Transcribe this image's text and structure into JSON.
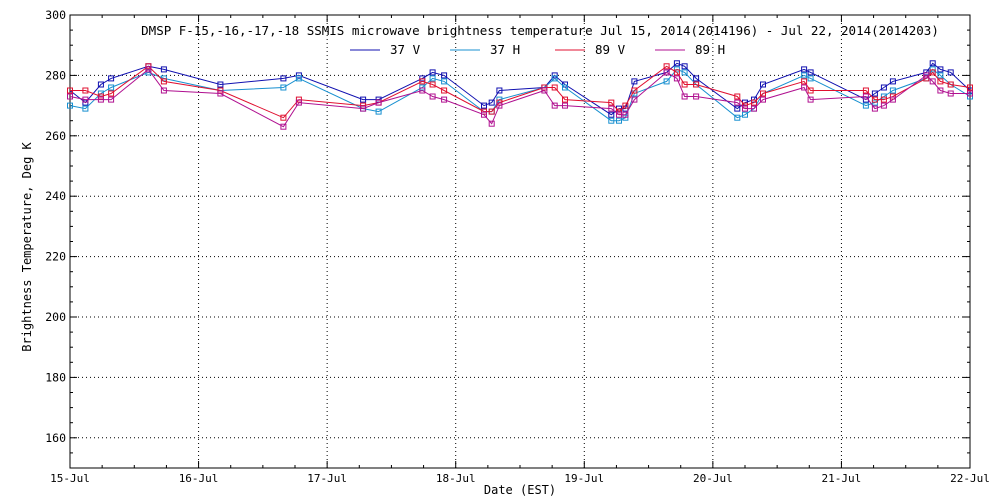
{
  "chart_data": {
    "type": "line",
    "title": "DMSP F-15,-16,-17,-18 SSMIS microwave brightness temperature Jul 15, 2014(2014196) - Jul 22, 2014(2014203)",
    "xlabel": "Date (EST)",
    "ylabel": "Brightness Temperature, Deg K",
    "xlim": [
      0,
      7
    ],
    "ylim": [
      150,
      300
    ],
    "x_ticks": [
      {
        "pos": 0,
        "label": "15-Jul"
      },
      {
        "pos": 1,
        "label": "16-Jul"
      },
      {
        "pos": 2,
        "label": "17-Jul"
      },
      {
        "pos": 3,
        "label": "18-Jul"
      },
      {
        "pos": 4,
        "label": "19-Jul"
      },
      {
        "pos": 5,
        "label": "20-Jul"
      },
      {
        "pos": 6,
        "label": "21-Jul"
      },
      {
        "pos": 7,
        "label": "22-Jul"
      }
    ],
    "y_ticks": [
      160,
      180,
      200,
      220,
      240,
      260,
      280,
      300
    ],
    "grid": true,
    "series": [
      {
        "name": "37 V",
        "color": "#1010b0",
        "x": [
          0,
          0.12,
          0.24,
          0.32,
          0.61,
          0.73,
          1.17,
          1.66,
          1.78,
          2.28,
          2.4,
          2.74,
          2.82,
          2.91,
          3.22,
          3.28,
          3.34,
          3.69,
          3.77,
          3.85,
          4.21,
          4.27,
          4.32,
          4.39,
          4.64,
          4.72,
          4.78,
          4.87,
          5.19,
          5.25,
          5.32,
          5.39,
          5.71,
          5.76,
          6.19,
          6.26,
          6.33,
          6.4,
          6.66,
          6.71,
          6.77,
          6.85,
          7
        ],
        "y": [
          275,
          271,
          277,
          279,
          283,
          282,
          277,
          279,
          280,
          272,
          272,
          279,
          281,
          280,
          270,
          271,
          275,
          276,
          280,
          277,
          267,
          269,
          269,
          278,
          281,
          284,
          283,
          279,
          269,
          271,
          272,
          277,
          282,
          281,
          272,
          274,
          276,
          278,
          281,
          284,
          282,
          281,
          275
        ]
      },
      {
        "name": "37 H",
        "color": "#1890d0",
        "x": [
          0,
          0.12,
          0.24,
          0.32,
          0.61,
          0.73,
          1.17,
          1.66,
          1.78,
          2.28,
          2.4,
          2.74,
          2.82,
          2.91,
          3.22,
          3.28,
          3.34,
          3.69,
          3.77,
          3.85,
          4.21,
          4.27,
          4.32,
          4.39,
          4.64,
          4.72,
          4.78,
          4.87,
          5.19,
          5.25,
          5.32,
          5.39,
          5.71,
          5.76,
          6.19,
          6.26,
          6.33,
          6.4,
          6.66,
          6.71,
          6.77,
          6.85,
          7
        ],
        "y": [
          270,
          269,
          274,
          276,
          281,
          279,
          275,
          276,
          279,
          269,
          268,
          276,
          279,
          278,
          268,
          268,
          272,
          276,
          279,
          276,
          265,
          265,
          266,
          274,
          278,
          282,
          281,
          277,
          266,
          267,
          269,
          274,
          280,
          279,
          270,
          271,
          273,
          275,
          279,
          282,
          280,
          277,
          273
        ]
      },
      {
        "name": "89 V",
        "color": "#e01030",
        "x": [
          0,
          0.12,
          0.24,
          0.32,
          0.61,
          0.73,
          1.17,
          1.66,
          1.78,
          2.28,
          2.4,
          2.74,
          2.82,
          2.91,
          3.22,
          3.28,
          3.34,
          3.69,
          3.77,
          3.85,
          4.21,
          4.27,
          4.32,
          4.39,
          4.64,
          4.72,
          4.78,
          4.87,
          5.19,
          5.25,
          5.32,
          5.39,
          5.71,
          5.76,
          6.19,
          6.26,
          6.33,
          6.4,
          6.66,
          6.71,
          6.77,
          6.85,
          7
        ],
        "y": [
          275,
          275,
          273,
          274,
          283,
          278,
          275,
          266,
          272,
          270,
          271,
          278,
          277,
          275,
          268,
          268,
          271,
          276,
          276,
          272,
          271,
          268,
          270,
          275,
          283,
          281,
          277,
          277,
          273,
          270,
          271,
          274,
          278,
          275,
          275,
          272,
          272,
          273,
          279,
          281,
          278,
          277,
          276
        ]
      },
      {
        "name": "89 H",
        "color": "#b01090",
        "x": [
          0,
          0.12,
          0.24,
          0.32,
          0.61,
          0.73,
          1.17,
          1.66,
          1.78,
          2.28,
          2.4,
          2.74,
          2.82,
          2.91,
          3.22,
          3.28,
          3.34,
          3.69,
          3.77,
          3.85,
          4.21,
          4.27,
          4.32,
          4.39,
          4.64,
          4.72,
          4.78,
          4.87,
          5.19,
          5.25,
          5.32,
          5.39,
          5.71,
          5.76,
          6.19,
          6.26,
          6.33,
          6.4,
          6.66,
          6.71,
          6.77,
          6.85,
          7
        ],
        "y": [
          273,
          272,
          272,
          272,
          282,
          275,
          274,
          263,
          271,
          269,
          271,
          275,
          273,
          272,
          267,
          264,
          270,
          275,
          270,
          270,
          269,
          267,
          267,
          272,
          281,
          279,
          273,
          273,
          271,
          269,
          269,
          272,
          276,
          272,
          273,
          269,
          270,
          272,
          280,
          278,
          275,
          274,
          274
        ]
      }
    ]
  }
}
